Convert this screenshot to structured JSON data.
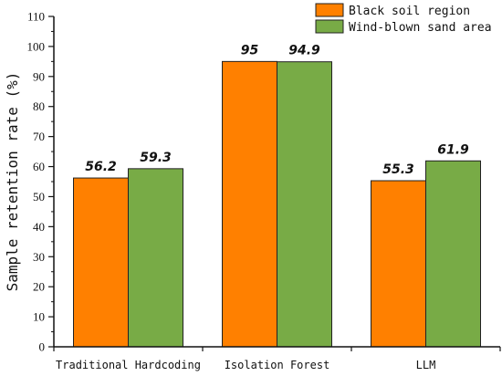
{
  "chart_data": {
    "type": "bar",
    "categories": [
      "Traditional Hardcoding",
      "Isolation Forest",
      "LLM"
    ],
    "series": [
      {
        "name": "Black soil region",
        "values": [
          56.2,
          95,
          55.3
        ],
        "color": "#FF8000"
      },
      {
        "name": "Wind-blown sand area",
        "values": [
          59.3,
          94.9,
          61.9
        ],
        "color": "#78AB46"
      }
    ],
    "data_labels": [
      [
        "56.2",
        "95",
        "55.3"
      ],
      [
        "59.3",
        "94.9",
        "61.9"
      ]
    ],
    "ylabel": "Sample retention rate (%)",
    "ylim": [
      0,
      110
    ],
    "yticks": [
      0,
      10,
      20,
      30,
      40,
      50,
      60,
      70,
      80,
      90,
      100,
      110
    ],
    "grid": false,
    "legend": "top-right"
  }
}
